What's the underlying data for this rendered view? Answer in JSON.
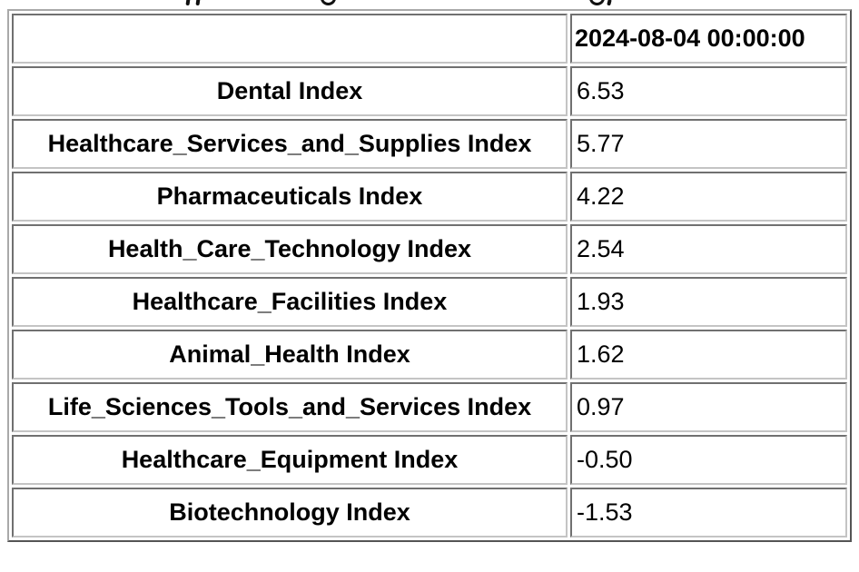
{
  "table": {
    "header": {
      "corner_label": "",
      "date_column": "2024-08-04 00:00:00"
    },
    "rows": [
      {
        "label": "Dental Index",
        "value": "6.53"
      },
      {
        "label": "Healthcare_Services_and_Supplies Index",
        "value": "5.77"
      },
      {
        "label": "Pharmaceuticals Index",
        "value": "4.22"
      },
      {
        "label": "Health_Care_Technology Index",
        "value": "2.54"
      },
      {
        "label": "Healthcare_Facilities Index",
        "value": "1.93"
      },
      {
        "label": "Animal_Health Index",
        "value": "1.62"
      },
      {
        "label": "Life_Sciences_Tools_and_Services Index",
        "value": "0.97"
      },
      {
        "label": "Healthcare_Equipment Index",
        "value": "-0.50"
      },
      {
        "label": "Biotechnology Index",
        "value": "-1.53"
      }
    ]
  },
  "chart_data": {
    "type": "table",
    "title": "",
    "columns": [
      "",
      "2024-08-04 00:00:00"
    ],
    "categories": [
      "Dental Index",
      "Healthcare_Services_and_Supplies Index",
      "Pharmaceuticals Index",
      "Health_Care_Technology Index",
      "Healthcare_Facilities Index",
      "Animal_Health Index",
      "Life_Sciences_Tools_and_Services Index",
      "Healthcare_Equipment Index",
      "Biotechnology Index"
    ],
    "values": [
      6.53,
      5.77,
      4.22,
      2.54,
      1.93,
      1.62,
      0.97,
      -0.5,
      -1.53
    ]
  },
  "colors": {
    "background": "#ffffff",
    "text": "#000000",
    "border_outer": "#a9a9a9",
    "border_cell_dark": "#838383",
    "border_cell_light": "#c4c4c4"
  }
}
